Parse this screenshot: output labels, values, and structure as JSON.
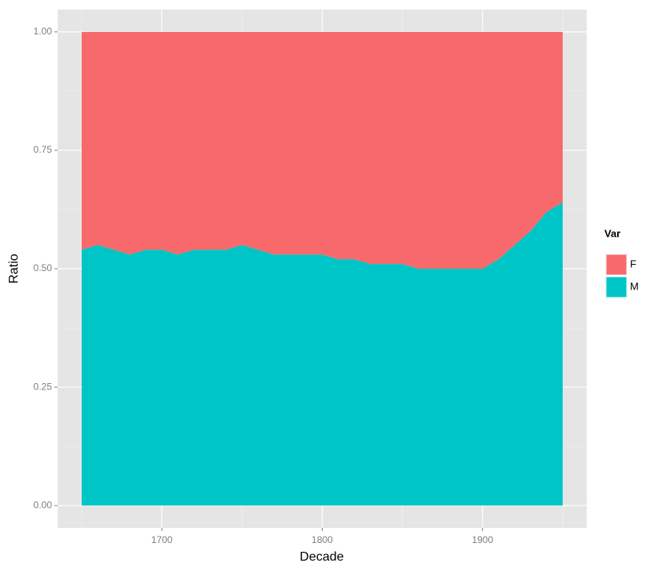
{
  "chart_data": {
    "type": "area",
    "stacked": true,
    "x_label": "Decade",
    "y_label": "Ratio",
    "legend_title": "Var",
    "legend_position": "right",
    "x": [
      1650,
      1660,
      1670,
      1680,
      1690,
      1700,
      1710,
      1720,
      1730,
      1740,
      1750,
      1760,
      1770,
      1780,
      1790,
      1800,
      1810,
      1820,
      1830,
      1840,
      1850,
      1860,
      1870,
      1880,
      1890,
      1900,
      1910,
      1920,
      1930,
      1940,
      1950
    ],
    "series": [
      {
        "name": "F",
        "color": "#f8696b",
        "values": [
          0.46,
          0.45,
          0.46,
          0.47,
          0.46,
          0.46,
          0.47,
          0.46,
          0.46,
          0.46,
          0.45,
          0.46,
          0.47,
          0.47,
          0.47,
          0.47,
          0.48,
          0.48,
          0.49,
          0.49,
          0.49,
          0.5,
          0.5,
          0.5,
          0.5,
          0.5,
          0.48,
          0.45,
          0.42,
          0.38,
          0.36
        ]
      },
      {
        "name": "M",
        "color": "#00c5c7",
        "values": [
          0.54,
          0.55,
          0.54,
          0.53,
          0.54,
          0.54,
          0.53,
          0.54,
          0.54,
          0.54,
          0.55,
          0.54,
          0.53,
          0.53,
          0.53,
          0.53,
          0.52,
          0.52,
          0.51,
          0.51,
          0.51,
          0.5,
          0.5,
          0.5,
          0.5,
          0.5,
          0.52,
          0.55,
          0.58,
          0.62,
          0.64
        ]
      }
    ],
    "xlim": [
      1635,
      1965
    ],
    "xticks": [
      1700,
      1800,
      1900
    ],
    "ylim": [
      -0.047,
      1.047
    ],
    "yticks": [
      {
        "value": 0,
        "label": "0.00"
      },
      {
        "value": 0.25,
        "label": "0.25"
      },
      {
        "value": 0.5,
        "label": "0.50"
      },
      {
        "value": 0.75,
        "label": "0.75"
      },
      {
        "value": 1,
        "label": "1.00"
      }
    ],
    "grid": true
  }
}
